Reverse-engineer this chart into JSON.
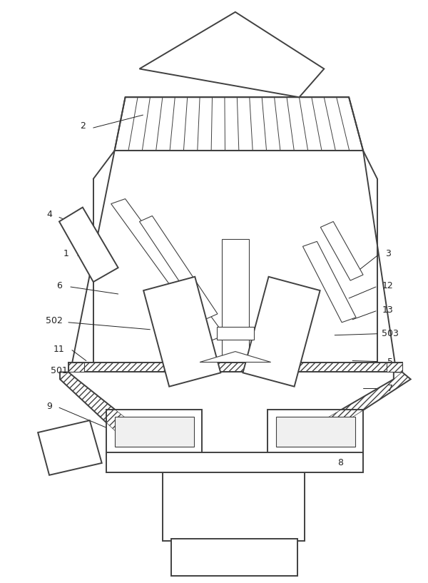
{
  "bg_color": "#ffffff",
  "line_color": "#404040",
  "fig_width": 6.0,
  "fig_height": 8.17,
  "label_color": "#222222",
  "font_size": 9
}
